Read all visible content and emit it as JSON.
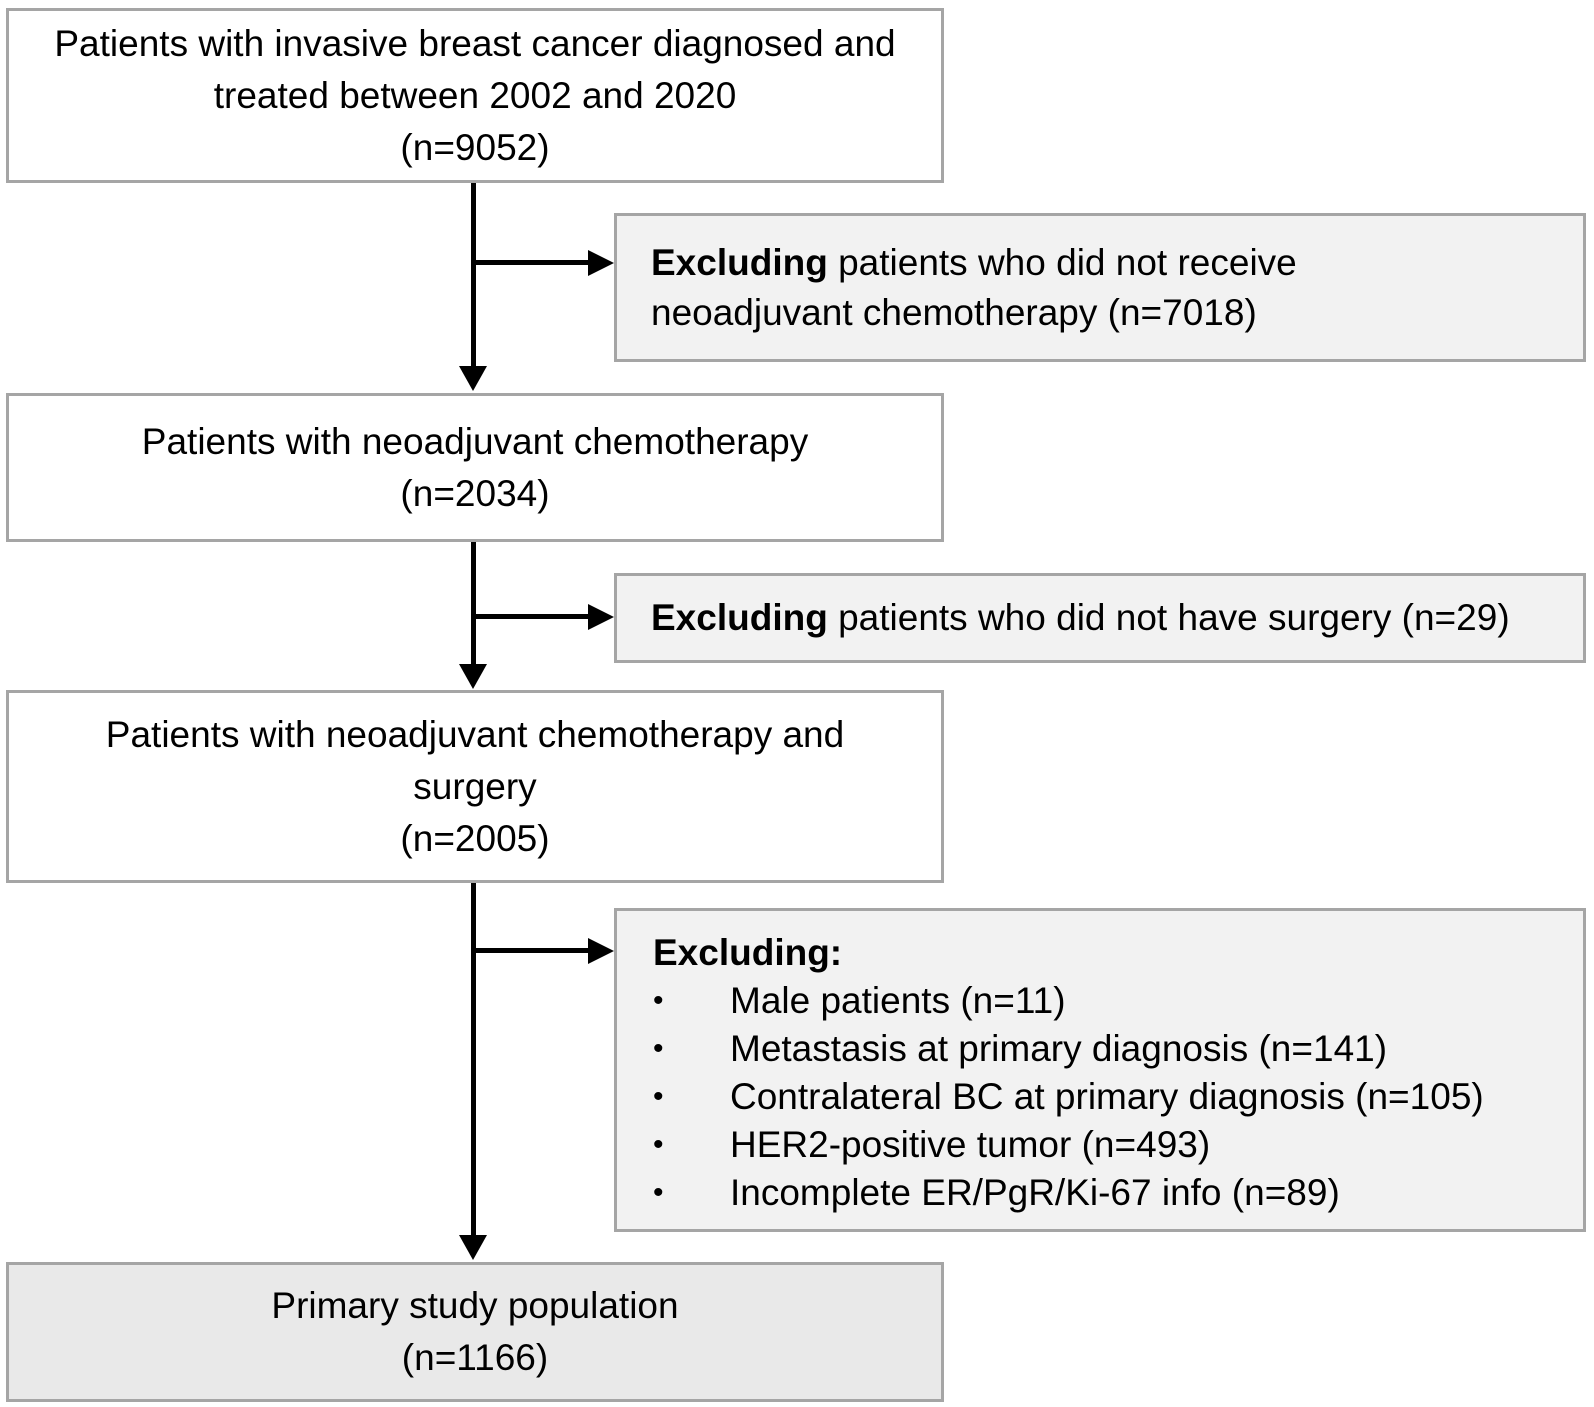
{
  "figure": {
    "type": "patient-flow-diagram",
    "colors": {
      "main_box_fill": "#ffffff",
      "exclusion_box_fill": "#f2f2f2",
      "final_box_fill": "#e9e9e9",
      "box_border": "#a5a5a5",
      "arrow": "#000000",
      "text": "#000000"
    },
    "boxes": [
      {
        "id": "population",
        "title": "Patients with invasive breast cancer diagnosed and treated between 2002 and 2020",
        "n": "(n=9052)"
      },
      {
        "id": "nact",
        "title": "Patients with neoadjuvant chemotherapy",
        "n": "(n=2034)"
      },
      {
        "id": "nact-surgery",
        "title": "Patients with neoadjuvant chemotherapy and surgery",
        "n": "(n=2005)"
      },
      {
        "id": "final",
        "title": "Primary study population",
        "n": "(n=1166)"
      }
    ],
    "exclusions": [
      {
        "id": "excl-1",
        "lead": "Excluding",
        "text": " patients who did not receive neoadjuvant chemotherapy (n=7018)"
      },
      {
        "id": "excl-2",
        "lead": "Excluding",
        "text": " patients who did not have surgery (n=29)"
      },
      {
        "id": "excl-3",
        "lead": "Excluding:",
        "bullet": "•",
        "items": [
          "Male patients (n=11)",
          "Metastasis at primary diagnosis (n=141)",
          "Contralateral BC at primary diagnosis (n=105)",
          "HER2-positive tumor (n=493)",
          "Incomplete ER/PgR/Ki-67 info (n=89)"
        ]
      }
    ]
  }
}
